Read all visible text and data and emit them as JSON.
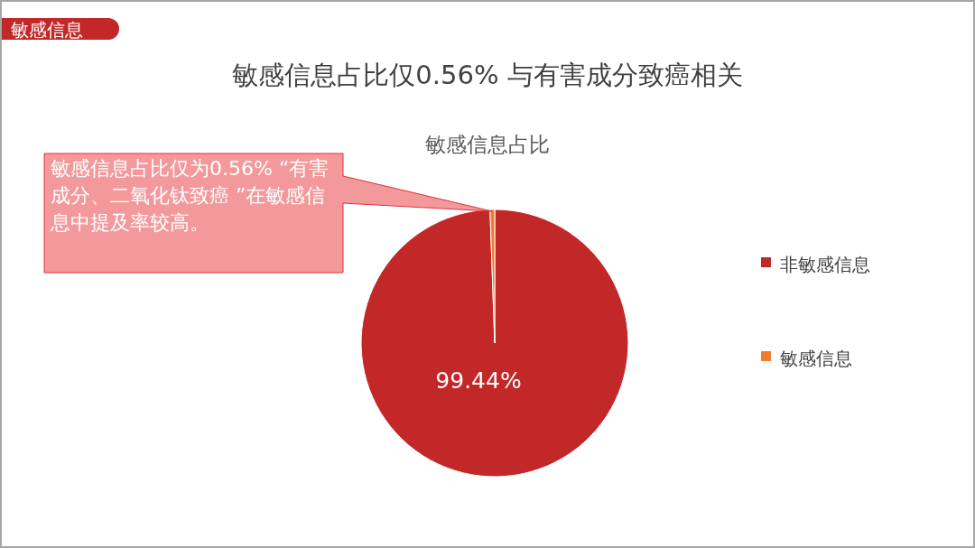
{
  "chart_data": {
    "type": "pie",
    "title": "敏感信息占比仅0.56% 与有害成分致癌相关",
    "subtitle": "敏感信息占比",
    "categories": [
      "非敏感信息",
      "敏感信息"
    ],
    "values": [
      99.44,
      0.56
    ],
    "colors": [
      "#c32828",
      "#ed7d31"
    ],
    "value_labels": [
      "99.44%",
      null
    ],
    "legend": "right",
    "annotations": [
      "敏感信息",
      "敏感信息占比仅为0.56% “有害成分、二氧化钛致癌 ”在敏感信息中提及率较高。"
    ]
  }
}
